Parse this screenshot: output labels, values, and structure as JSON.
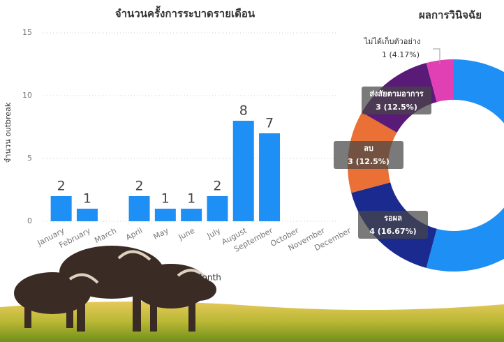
{
  "chart_data": [
    {
      "type": "bar",
      "title": "จำนวนครั้งการระบาดรายเดือน",
      "y_label": "จำนวน outbreak",
      "x_label": "Month",
      "categories": [
        "January",
        "February",
        "March",
        "April",
        "May",
        "June",
        "July",
        "August",
        "September",
        "October",
        "November",
        "December"
      ],
      "values": [
        2,
        1,
        null,
        2,
        1,
        1,
        2,
        8,
        7,
        null,
        null,
        null
      ],
      "color": "#1e8ff5",
      "ylim": [
        0,
        15
      ],
      "yticks": [
        0,
        5,
        10,
        15
      ],
      "grid": true
    },
    {
      "type": "donut",
      "title": "ผลการวินิจฉัย",
      "categories": [
        null,
        "รอผล",
        "ลบ",
        "ส่งสัยตามอาการ",
        "ไม่ได้เก็บตัวอย่าง"
      ],
      "values": [
        13,
        4,
        3,
        3,
        1
      ],
      "value_labels": [
        null,
        "4 (16.67%)",
        "3 (12.5%)",
        "3 (12.5%)",
        "1 (4.17%)"
      ],
      "colors": [
        "#1e8ff5",
        "#1b2a8e",
        "#ea7035",
        "#5a1a78",
        "#e040b4"
      ]
    }
  ]
}
